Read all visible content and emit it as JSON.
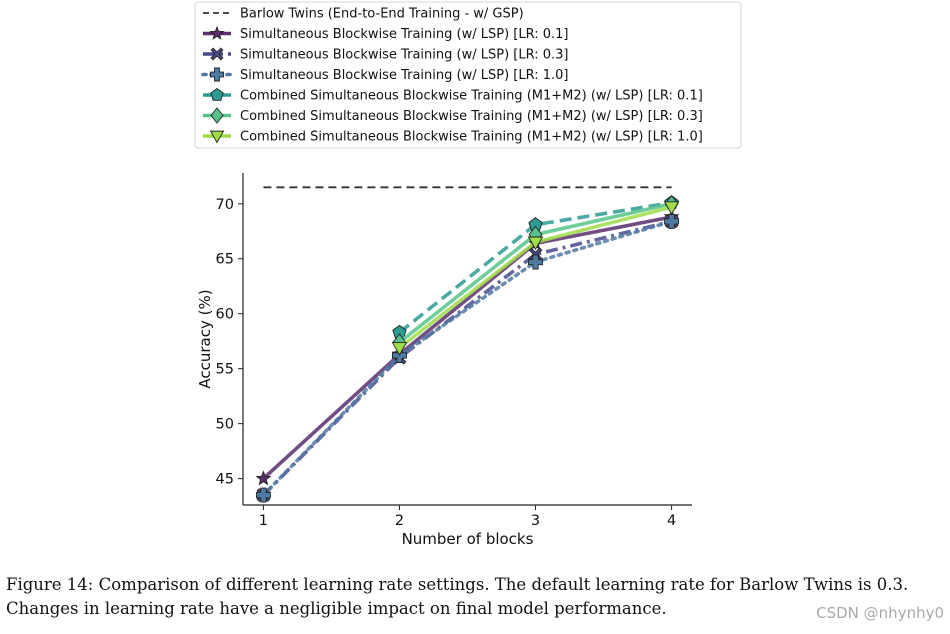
{
  "chart_data": {
    "type": "line",
    "title": "",
    "xlabel": "Number of blocks",
    "ylabel": "Accuracy (%)",
    "x": [
      1,
      2,
      3,
      4
    ],
    "xlim": [
      0.85,
      4.15
    ],
    "ylim": [
      42.6,
      72.8
    ],
    "yticks": [
      45,
      50,
      55,
      60,
      65,
      70
    ],
    "xticks": [
      1,
      2,
      3,
      4
    ],
    "grid": false,
    "legend_position": "top-center, above plot",
    "reference_line": {
      "name": "Barlow Twins (End-to-End Training - w/ GSP)",
      "value": 71.5,
      "color": "#333333",
      "dash": "dashed"
    },
    "series": [
      {
        "name": "Simultaneous Blockwise Training (w/ LSP) [LR: 0.1]",
        "values": [
          45.0,
          56.3,
          66.4,
          68.8
        ],
        "color": "#5b2d6e",
        "dash": "solid",
        "marker": "star"
      },
      {
        "name": "Simultaneous Blockwise Training (w/ LSP) [LR: 0.3]",
        "values": [
          43.5,
          56.0,
          65.4,
          68.4
        ],
        "color": "#4a4a8e",
        "dash": "dashdot",
        "marker": "x"
      },
      {
        "name": "Simultaneous Blockwise Training (w/ LSP) [LR: 1.0]",
        "values": [
          43.5,
          56.2,
          64.7,
          68.4
        ],
        "color": "#4f7aa2",
        "dash": "dotted",
        "marker": "plus"
      },
      {
        "name": "Combined Simultaneous Blockwise Training (M1+M2) (w/ LSP) [LR: 0.1]",
        "values": [
          null,
          58.3,
          68.1,
          70.1
        ],
        "color": "#2e9a94",
        "dash": "dashed",
        "marker": "pentagon"
      },
      {
        "name": "Combined Simultaneous Blockwise Training (M1+M2) (w/ LSP) [LR: 0.3]",
        "values": [
          null,
          57.4,
          67.2,
          70.0
        ],
        "color": "#56c38a",
        "dash": "solid",
        "marker": "diamond"
      },
      {
        "name": "Combined Simultaneous Blockwise Training (M1+M2) (w/ LSP) [LR: 1.0]",
        "values": [
          null,
          56.9,
          66.5,
          69.7
        ],
        "color": "#9fdc46",
        "dash": "solid",
        "marker": "triangle-down"
      }
    ]
  },
  "caption": "Figure 14: Comparison of different learning rate settings. The default learning rate for Barlow Twins is 0.3. Changes in learning rate have a negligible impact on final model performance.",
  "watermark": "CSDN @nhynhy0"
}
